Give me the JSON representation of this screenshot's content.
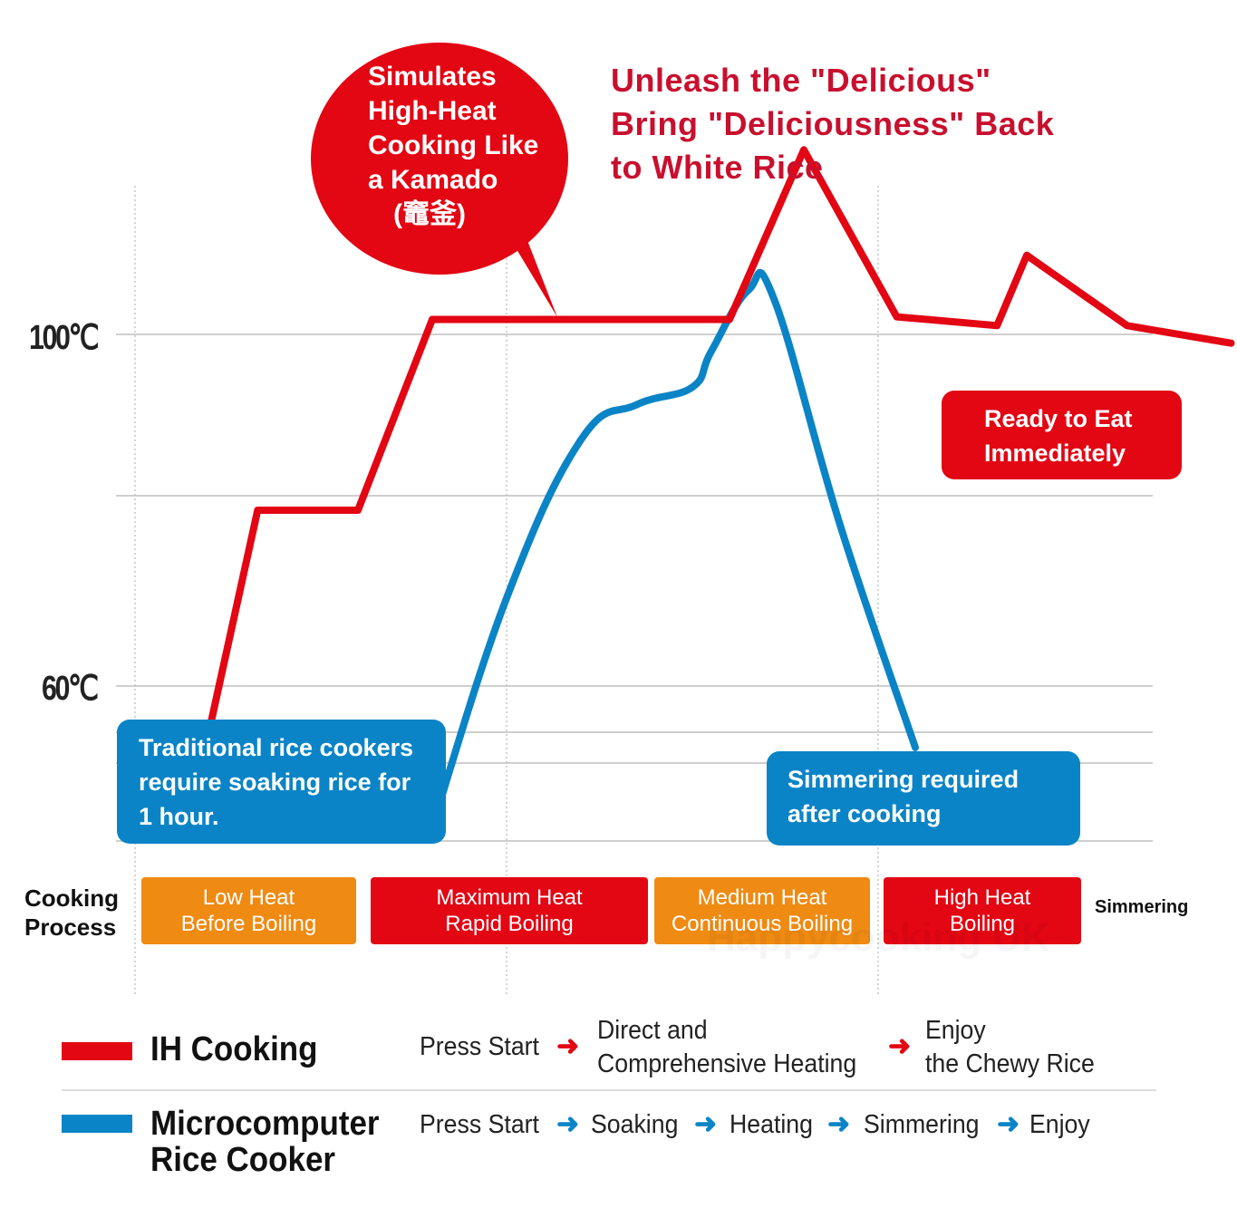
{
  "chart_data": {
    "type": "line",
    "title_lines": [
      "Unleash the \"Delicious\"",
      "Bring \"Deliciousness\" Back",
      "to White Rice"
    ],
    "y_ticks": [
      {
        "label": "100℃",
        "value": 100
      },
      {
        "label": "60℃",
        "value": 60
      }
    ],
    "ylim": [
      43,
      121
    ],
    "grid": true,
    "x_axis": "time",
    "series": [
      {
        "name": "IH Cooking",
        "color": "#e30613",
        "points": [
          [
            0.2,
            55
          ],
          [
            0.33,
            80
          ],
          [
            0.6,
            80
          ],
          [
            0.8,
            101.7
          ],
          [
            1.6,
            101.7
          ],
          [
            1.8,
            121
          ],
          [
            2.05,
            102
          ],
          [
            2.32,
            101
          ],
          [
            2.4,
            109
          ],
          [
            2.67,
            101
          ],
          [
            2.95,
            99
          ]
        ]
      },
      {
        "name": "Microcomputer Rice Cooker",
        "color": "#0a84c6",
        "points": [
          [
            0.8,
            44
          ],
          [
            1.0,
            70
          ],
          [
            1.2,
            88
          ],
          [
            1.35,
            92
          ],
          [
            1.5,
            94
          ],
          [
            1.55,
            98
          ],
          [
            1.65,
            105
          ],
          [
            1.72,
            104
          ],
          [
            1.9,
            78
          ],
          [
            2.1,
            53
          ]
        ]
      }
    ],
    "stage_boundaries": [
      0,
      1,
      2,
      3
    ]
  },
  "bubble": {
    "lines": [
      "Simulates",
      "High-Heat",
      "Cooking Like",
      "a Kamado",
      "(竈釜)"
    ]
  },
  "callouts": {
    "soak": {
      "lines": [
        "Traditional rice cookers",
        "require soaking rice for",
        "1 hour."
      ]
    },
    "ready": {
      "lines": [
        "Ready to Eat",
        "Immediately"
      ]
    },
    "simmer": {
      "lines": [
        "Simmering required",
        "after cooking"
      ]
    }
  },
  "process": {
    "label_lines": [
      "Cooking",
      "Process"
    ],
    "stages": [
      {
        "line1": "Low Heat",
        "line2": "Before Boiling",
        "color": "#ef8a12"
      },
      {
        "line1": "Maximum Heat",
        "line2": "Rapid Boiling",
        "color": "#e30613"
      },
      {
        "line1": "Medium Heat",
        "line2": "Continuous Boiling",
        "color": "#ef8a12"
      },
      {
        "line1": "High Heat",
        "line2": "Boiling",
        "color": "#e30613"
      }
    ],
    "last_stage": "Simmering"
  },
  "watermark": "Happycooking UK",
  "legend": {
    "ih": {
      "name": "IH Cooking",
      "steps": [
        "Press Start",
        "Direct and",
        "Comprehensive Heating",
        "Enjoy",
        "the Chewy Rice"
      ]
    },
    "micro": {
      "name_lines": [
        "Microcomputer",
        "Rice Cooker"
      ],
      "steps": [
        "Press Start",
        "Soaking",
        "Heating",
        "Simmering",
        "Enjoy"
      ]
    }
  },
  "colors": {
    "ih": "#e30613",
    "micro": "#0a84c6",
    "orange": "#ef8a12",
    "title": "#c8102e"
  }
}
